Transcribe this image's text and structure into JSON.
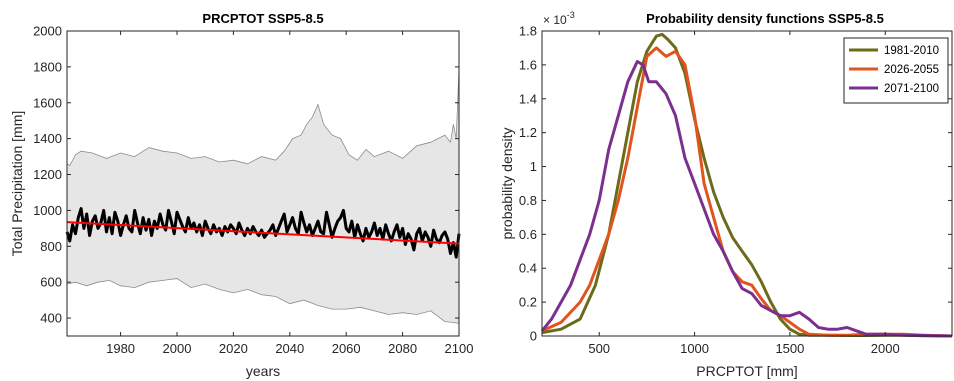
{
  "chart_data": [
    {
      "type": "line",
      "title": "PRCPTOT SSP5-8.5",
      "xlabel": "years",
      "ylabel": "Total Precipitation [mm]",
      "xlim": [
        1961,
        2100
      ],
      "ylim": [
        300,
        2000
      ],
      "xticks": [
        "1980",
        "2000",
        "2020",
        "2040",
        "2060",
        "2080",
        "2100"
      ],
      "yticks": [
        "400",
        "600",
        "800",
        "1000",
        "1200",
        "1400",
        "1600",
        "1800",
        "2000"
      ],
      "grid": false,
      "colors": {
        "band": "#e6e6e6",
        "band_edge": "#8c8c8c",
        "mean": "#000000",
        "trend": "#ff0000"
      },
      "band_upper": {
        "x": [
          1961,
          1962,
          1964,
          1966,
          1970,
          1975,
          1980,
          1985,
          1990,
          1995,
          2000,
          2005,
          2010,
          2015,
          2020,
          2025,
          2030,
          2035,
          2038,
          2041,
          2044,
          2046,
          2048,
          2050,
          2052,
          2055,
          2058,
          2061,
          2064,
          2067,
          2070,
          2075,
          2080,
          2085,
          2090,
          2095,
          2097,
          2098,
          2099,
          2100
        ],
        "values": [
          1260,
          1250,
          1310,
          1330,
          1320,
          1290,
          1320,
          1300,
          1350,
          1330,
          1320,
          1290,
          1300,
          1270,
          1280,
          1260,
          1300,
          1280,
          1330,
          1400,
          1420,
          1480,
          1520,
          1590,
          1480,
          1420,
          1400,
          1310,
          1280,
          1340,
          1300,
          1330,
          1290,
          1360,
          1380,
          1420,
          1380,
          1480,
          1400,
          1790
        ]
      },
      "band_lower": {
        "x": [
          1961,
          1964,
          1968,
          1972,
          1976,
          1980,
          1985,
          1990,
          1995,
          2000,
          2005,
          2010,
          2015,
          2020,
          2025,
          2030,
          2035,
          2040,
          2045,
          2050,
          2055,
          2060,
          2065,
          2070,
          2075,
          2080,
          2085,
          2090,
          2095,
          2098,
          2100
        ],
        "values": [
          590,
          600,
          580,
          600,
          610,
          580,
          570,
          600,
          610,
          620,
          570,
          590,
          560,
          540,
          560,
          530,
          520,
          480,
          500,
          470,
          450,
          450,
          460,
          440,
          420,
          430,
          420,
          440,
          380,
          375,
          370
        ]
      },
      "series": [
        {
          "x_start": 1961,
          "x_end": 2100,
          "values": [
            880,
            830,
            920,
            870,
            960,
            1010,
            900,
            980,
            860,
            940,
            970,
            900,
            930,
            1000,
            880,
            960,
            870,
            990,
            940,
            860,
            920,
            970,
            900,
            880,
            1000,
            930,
            870,
            960,
            890,
            950,
            860,
            940,
            900,
            980,
            920,
            890,
            1000,
            940,
            870,
            990,
            950,
            910,
            880,
            960,
            900,
            930,
            880,
            920,
            860,
            940,
            900,
            870,
            920,
            880,
            900,
            860,
            910,
            880,
            920,
            900,
            870,
            930,
            890,
            860,
            900,
            870,
            910,
            880,
            860,
            890,
            850,
            870,
            890,
            920,
            860,
            900,
            940,
            980,
            880,
            920,
            960,
            900,
            870,
            990,
            930,
            880,
            920,
            860,
            900,
            940,
            880,
            870,
            990,
            920,
            850,
            900,
            940,
            960,
            1000,
            900,
            880,
            940,
            850,
            920,
            870,
            830,
            900,
            850,
            880,
            930,
            860,
            900,
            840,
            920,
            870,
            830,
            880,
            920,
            850,
            900,
            810,
            870,
            840,
            780,
            870,
            900,
            830,
            880,
            850,
            800,
            890,
            840,
            820,
            860,
            880,
            840,
            760,
            820,
            740,
            870
          ]
        },
        {
          "x": [
            1961,
            2100
          ],
          "values": [
            935,
            815
          ]
        }
      ]
    },
    {
      "type": "line",
      "title": "Probability density functions SSP5-8.5",
      "xlabel": "PRCPTOT [mm]",
      "ylabel": "probability density",
      "xlim": [
        200,
        2350
      ],
      "ylim": [
        0,
        0.0018
      ],
      "xticks": [
        "500",
        "1000",
        "1500",
        "2000"
      ],
      "yticks": [
        "0",
        "0.2",
        "0.4",
        "0.6",
        "0.8",
        "1",
        "1.2",
        "1.4",
        "1.6",
        "1.8"
      ],
      "exponent_label": "× 10",
      "exponent_power": "-3",
      "grid": false,
      "legend_position": "top-right",
      "series": [
        {
          "name": "1981-2010",
          "color": "#6b6b1a",
          "x": [
            200,
            300,
            400,
            480,
            550,
            600,
            650,
            700,
            750,
            800,
            830,
            860,
            900,
            950,
            1000,
            1050,
            1100,
            1150,
            1200,
            1250,
            1300,
            1350,
            1400,
            1450,
            1500,
            1550,
            1600,
            1700,
            1800,
            1900,
            2000,
            2100,
            2200,
            2350
          ],
          "values": [
            2e-05,
            4e-05,
            0.0001,
            0.0003,
            0.0006,
            0.0009,
            0.0012,
            0.0015,
            0.00168,
            0.00177,
            0.00178,
            0.00175,
            0.0017,
            0.00155,
            0.00128,
            0.00105,
            0.00085,
            0.0007,
            0.00058,
            0.0005,
            0.00042,
            0.00032,
            0.0002,
            0.0001,
            4e-05,
            1e-05,
            5e-06,
            5e-06,
            3e-06,
            3e-06,
            5e-06,
            5e-06,
            2e-06,
            0.0
          ]
        },
        {
          "name": "2026-2055",
          "color": "#e0541e",
          "x": [
            200,
            300,
            400,
            450,
            500,
            550,
            600,
            650,
            700,
            750,
            800,
            850,
            900,
            950,
            1000,
            1050,
            1100,
            1150,
            1200,
            1250,
            1300,
            1350,
            1400,
            1450,
            1500,
            1550,
            1600,
            1700,
            1800,
            1900,
            2000,
            2100,
            2200,
            2350
          ],
          "values": [
            3e-05,
            8e-05,
            0.0002,
            0.0003,
            0.00045,
            0.0006,
            0.0008,
            0.00105,
            0.00135,
            0.00165,
            0.0017,
            0.00165,
            0.00168,
            0.0016,
            0.0013,
            0.0009,
            0.0007,
            0.0005,
            0.00038,
            0.00032,
            0.0003,
            0.00022,
            0.00015,
            0.00012,
            8e-05,
            4e-05,
            1e-05,
            5e-06,
            5e-06,
            1e-05,
            1e-05,
            1e-05,
            5e-06,
            0.0
          ]
        },
        {
          "name": "2071-2100",
          "color": "#7b2f8e",
          "x": [
            200,
            250,
            300,
            350,
            400,
            450,
            500,
            550,
            600,
            650,
            700,
            730,
            760,
            800,
            850,
            900,
            950,
            1000,
            1050,
            1100,
            1150,
            1200,
            1250,
            1300,
            1350,
            1400,
            1450,
            1500,
            1550,
            1600,
            1650,
            1700,
            1750,
            1800,
            1850,
            1900,
            2000,
            2100,
            2200,
            2350
          ],
          "values": [
            3e-05,
            0.0001,
            0.0002,
            0.0003,
            0.00045,
            0.0006,
            0.0008,
            0.0011,
            0.0013,
            0.0015,
            0.00162,
            0.0016,
            0.0015,
            0.0015,
            0.00143,
            0.0013,
            0.00105,
            0.0009,
            0.00075,
            0.0006,
            0.0005,
            0.00038,
            0.00028,
            0.00025,
            0.00018,
            0.00015,
            0.00012,
            0.00012,
            0.00014,
            0.0001,
            5e-05,
            4e-05,
            4e-05,
            5e-05,
            3e-05,
            1e-05,
            1e-05,
            5e-06,
            3e-06,
            0.0
          ]
        }
      ]
    }
  ]
}
